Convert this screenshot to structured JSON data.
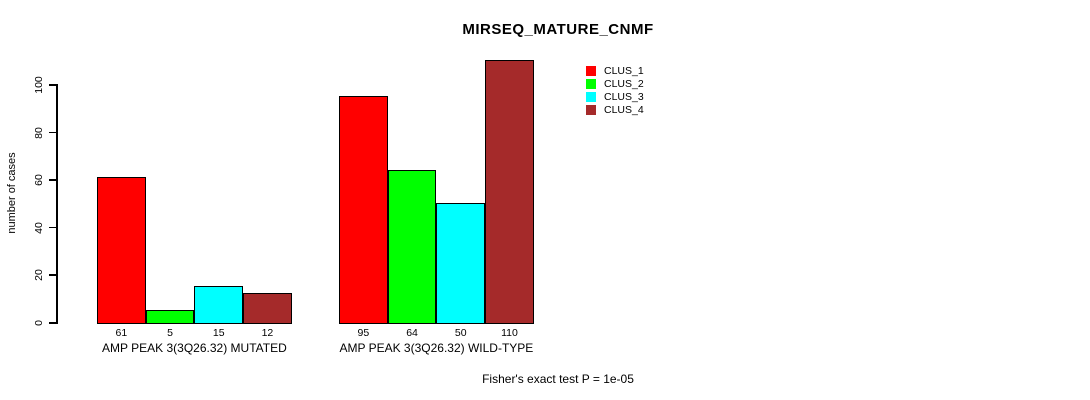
{
  "title": "MIRSEQ_MATURE_CNMF",
  "footer": "Fisher's exact test P = 1e-05",
  "chart_data": {
    "type": "bar",
    "title": "MIRSEQ_MATURE_CNMF",
    "xlabel": "",
    "ylabel": "number of cases",
    "ylim": [
      0,
      100
    ],
    "yticks": [
      0,
      20,
      40,
      60,
      80,
      100
    ],
    "grid": false,
    "legend_position": "top-right",
    "bar_value_labels_shown": true,
    "categories": [
      "AMP PEAK 3(3Q26.32) MUTATED",
      "AMP PEAK 3(3Q26.32) WILD-TYPE"
    ],
    "series": [
      {
        "name": "CLUS_1",
        "color": "#ff0000",
        "values": [
          61,
          95
        ]
      },
      {
        "name": "CLUS_2",
        "color": "#00ff00",
        "values": [
          5,
          64
        ]
      },
      {
        "name": "CLUS_3",
        "color": "#00ffff",
        "values": [
          15,
          50
        ]
      },
      {
        "name": "CLUS_4",
        "color": "#a52a2a",
        "values": [
          12,
          110
        ]
      }
    ],
    "annotation": "Fisher's exact test P = 1e-05"
  }
}
